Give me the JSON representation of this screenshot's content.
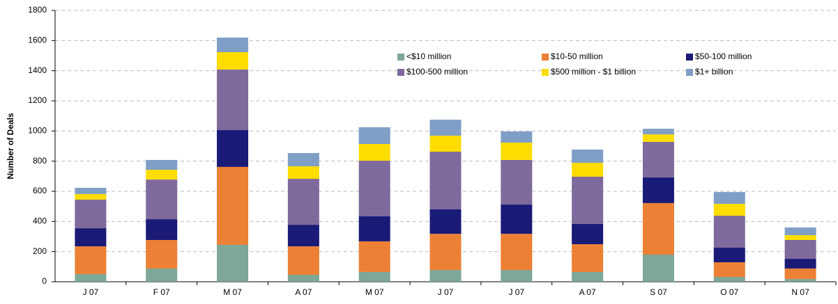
{
  "chart_data": {
    "type": "stacked_bar",
    "y_label": "Number of Deals",
    "categories": [
      "J 07",
      "F 07",
      "M 07",
      "A 07",
      "M 07",
      "J 07",
      "J 07",
      "A 07",
      "S 07",
      "O 07",
      "N 07"
    ],
    "series": [
      {
        "name": "<$10 million",
        "color": "#7da797",
        "values": [
          51,
          88,
          245,
          46,
          65,
          78,
          78,
          65,
          180,
          32,
          18
        ]
      },
      {
        "name": "$10-50 million",
        "color": "#ec8034",
        "values": [
          184,
          189,
          517,
          189,
          203,
          240,
          240,
          184,
          342,
          97,
          70
        ]
      },
      {
        "name": "$50-100 million",
        "color": "#1a1a77",
        "values": [
          120,
          138,
          244,
          143,
          166,
          162,
          194,
          134,
          170,
          97,
          64
        ]
      },
      {
        "name": "$100-500 million",
        "color": "#7f6a9d",
        "values": [
          190,
          263,
          402,
          305,
          369,
          383,
          296,
          314,
          236,
          212,
          125
        ]
      },
      {
        "name": "$500 million - $1 billion",
        "color": "#ffdd00",
        "values": [
          37,
          65,
          115,
          83,
          111,
          106,
          115,
          92,
          50,
          79,
          32
        ]
      },
      {
        "name": "$1+ billion",
        "color": "#7f9fc7",
        "values": [
          41,
          65,
          97,
          88,
          111,
          106,
          74,
          88,
          37,
          78,
          51
        ]
      }
    ],
    "ylim": [
      0,
      1800
    ],
    "yticks": [
      0,
      200,
      400,
      600,
      800,
      1000,
      1200,
      1400,
      1600,
      1800
    ],
    "grid": true,
    "legend": "upper right"
  }
}
